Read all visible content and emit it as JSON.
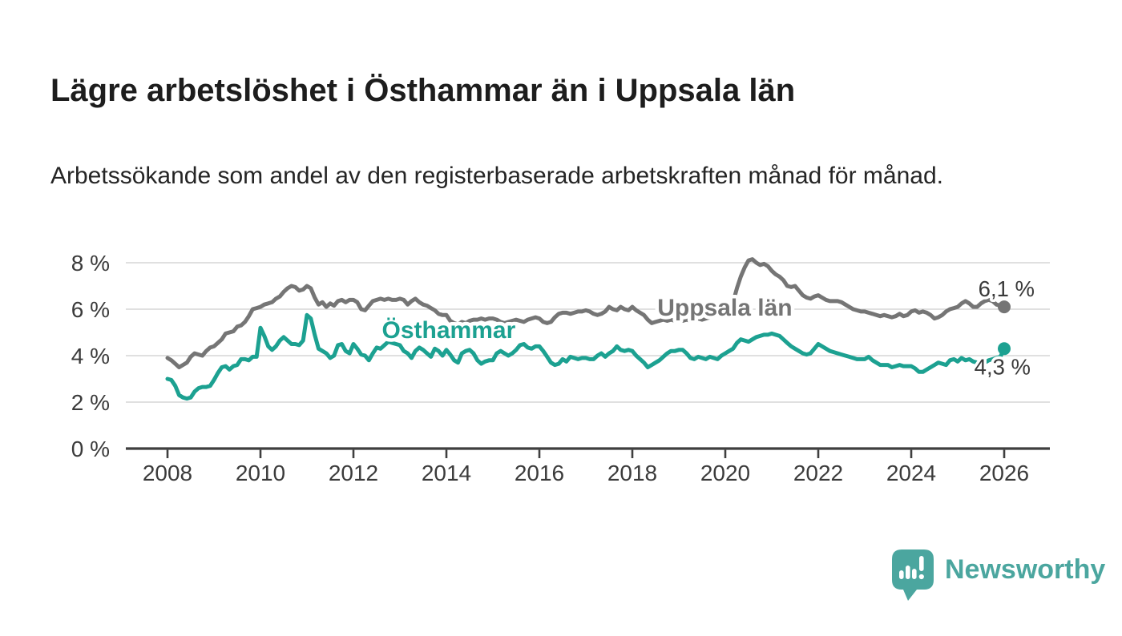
{
  "header": {
    "title": "Lägre arbetslöshet i Östhammar än i Uppsala län",
    "subtitle": "Arbetssökande som andel av den registerbaserade arbetskraften månad för månad."
  },
  "footer": {
    "brand": "Newsworthy",
    "brand_color": "#4BA69F",
    "icon": "newsworthy-speech-bubble-bar-chart"
  },
  "chart_data": {
    "type": "line",
    "title": "Lägre arbetslöshet i Östhammar än i Uppsala län",
    "subtitle": "Arbetssökande som andel av den registerbaserade arbetskraften månad för månad.",
    "x_axis": {
      "unit": "month",
      "start_year": 2008,
      "start": "2008-01",
      "end": "2026-01",
      "ticks": [
        2008,
        2010,
        2012,
        2014,
        2016,
        2018,
        2020,
        2022,
        2024,
        2026
      ]
    },
    "y_axis": {
      "ticks": [
        0,
        2,
        4,
        6,
        8
      ],
      "format": "{v} %",
      "ylim": [
        0,
        8.6
      ]
    },
    "grid": true,
    "style": {
      "grid_color": "#d6d6d6",
      "axis_color": "#3f3f3f",
      "tick_label_color": "#3b3b3b",
      "value_label_color": "#3a3a3a",
      "halo_color": "#ffffff"
    },
    "series": [
      {
        "name": "Uppsala län",
        "color": "#757575",
        "end_label": "6,1 %",
        "end_label_anchor": "end",
        "end_label_offset": {
          "dx": 38,
          "dy": -13
        },
        "inline_label": {
          "year": 2019.99,
          "value": 6.07
        },
        "values": [
          3.9,
          3.8,
          3.65,
          3.5,
          3.6,
          3.7,
          3.95,
          4.1,
          4.05,
          4.0,
          4.2,
          4.35,
          4.4,
          4.55,
          4.7,
          4.95,
          5.0,
          5.05,
          5.25,
          5.3,
          5.45,
          5.7,
          6.0,
          6.05,
          6.1,
          6.2,
          6.25,
          6.3,
          6.45,
          6.55,
          6.75,
          6.9,
          7.0,
          6.95,
          6.8,
          6.85,
          7.0,
          6.9,
          6.5,
          6.2,
          6.3,
          6.1,
          6.25,
          6.15,
          6.35,
          6.4,
          6.3,
          6.4,
          6.4,
          6.3,
          6.0,
          5.95,
          6.15,
          6.35,
          6.4,
          6.45,
          6.4,
          6.45,
          6.4,
          6.4,
          6.45,
          6.4,
          6.2,
          6.35,
          6.45,
          6.3,
          6.2,
          6.15,
          6.05,
          5.95,
          5.8,
          5.75,
          5.75,
          5.5,
          5.4,
          5.35,
          5.45,
          5.4,
          5.5,
          5.55,
          5.55,
          5.6,
          5.55,
          5.6,
          5.6,
          5.55,
          5.45,
          5.4,
          5.45,
          5.5,
          5.55,
          5.5,
          5.45,
          5.55,
          5.6,
          5.65,
          5.6,
          5.45,
          5.4,
          5.45,
          5.65,
          5.8,
          5.85,
          5.85,
          5.8,
          5.85,
          5.9,
          5.9,
          5.95,
          5.9,
          5.8,
          5.75,
          5.8,
          5.9,
          6.1,
          6.0,
          5.95,
          6.1,
          6.0,
          5.95,
          6.1,
          5.95,
          5.85,
          5.75,
          5.55,
          5.4,
          5.45,
          5.5,
          5.55,
          5.5,
          5.55,
          5.5,
          5.55,
          5.5,
          5.55,
          5.5,
          5.55,
          5.6,
          5.55,
          5.6,
          5.65,
          5.7,
          5.8,
          5.9,
          6.0,
          6.1,
          6.3,
          6.9,
          7.4,
          7.8,
          8.1,
          8.15,
          8.0,
          7.9,
          7.95,
          7.85,
          7.65,
          7.5,
          7.4,
          7.25,
          7.0,
          6.95,
          7.0,
          6.8,
          6.6,
          6.5,
          6.45,
          6.55,
          6.6,
          6.5,
          6.4,
          6.35,
          6.35,
          6.35,
          6.3,
          6.2,
          6.1,
          6.0,
          5.95,
          5.9,
          5.9,
          5.85,
          5.8,
          5.75,
          5.7,
          5.75,
          5.7,
          5.65,
          5.7,
          5.8,
          5.7,
          5.75,
          5.9,
          5.95,
          5.85,
          5.9,
          5.85,
          5.75,
          5.6,
          5.65,
          5.75,
          5.9,
          6.0,
          6.05,
          6.1,
          6.25,
          6.35,
          6.25,
          6.1,
          6.1,
          6.25,
          6.35,
          6.4,
          6.35,
          6.2,
          6.15,
          6.1
        ]
      },
      {
        "name": "Östhammar",
        "color": "#1CA191",
        "end_label": "4,3 %",
        "end_label_anchor": "end",
        "end_label_offset": {
          "dx": 33,
          "dy": 32
        },
        "inline_label": {
          "year": 2014.05,
          "value": 5.1
        },
        "values": [
          3.0,
          2.95,
          2.7,
          2.3,
          2.2,
          2.15,
          2.2,
          2.45,
          2.6,
          2.65,
          2.65,
          2.7,
          2.95,
          3.25,
          3.5,
          3.55,
          3.4,
          3.55,
          3.6,
          3.85,
          3.85,
          3.8,
          3.95,
          3.95,
          5.2,
          4.85,
          4.4,
          4.25,
          4.4,
          4.65,
          4.8,
          4.65,
          4.5,
          4.5,
          4.45,
          4.65,
          5.75,
          5.6,
          4.9,
          4.3,
          4.2,
          4.1,
          3.9,
          4.0,
          4.45,
          4.5,
          4.2,
          4.1,
          4.5,
          4.3,
          4.05,
          4.0,
          3.8,
          4.1,
          4.35,
          4.3,
          4.45,
          4.6,
          4.55,
          4.5,
          4.45,
          4.2,
          4.1,
          3.9,
          4.2,
          4.35,
          4.25,
          4.1,
          3.95,
          4.3,
          4.2,
          4.0,
          4.25,
          4.05,
          3.8,
          3.7,
          4.1,
          4.2,
          4.25,
          4.1,
          3.8,
          3.65,
          3.75,
          3.8,
          3.8,
          4.1,
          4.2,
          4.1,
          4.0,
          4.1,
          4.25,
          4.45,
          4.5,
          4.35,
          4.3,
          4.4,
          4.4,
          4.2,
          3.95,
          3.7,
          3.6,
          3.65,
          3.85,
          3.75,
          3.95,
          3.9,
          3.85,
          3.9,
          3.9,
          3.85,
          3.85,
          4.0,
          4.1,
          3.95,
          4.1,
          4.2,
          4.4,
          4.25,
          4.2,
          4.25,
          4.2,
          4.0,
          3.85,
          3.7,
          3.5,
          3.6,
          3.7,
          3.8,
          3.95,
          4.1,
          4.2,
          4.2,
          4.25,
          4.25,
          4.1,
          3.9,
          3.85,
          3.95,
          3.9,
          3.85,
          3.95,
          3.9,
          3.85,
          4.0,
          4.1,
          4.2,
          4.3,
          4.55,
          4.7,
          4.65,
          4.6,
          4.7,
          4.8,
          4.85,
          4.9,
          4.9,
          4.95,
          4.9,
          4.85,
          4.7,
          4.55,
          4.4,
          4.3,
          4.2,
          4.1,
          4.05,
          4.1,
          4.3,
          4.5,
          4.4,
          4.3,
          4.2,
          4.15,
          4.1,
          4.05,
          4.0,
          3.95,
          3.9,
          3.85,
          3.85,
          3.85,
          3.95,
          3.8,
          3.7,
          3.6,
          3.6,
          3.6,
          3.5,
          3.55,
          3.6,
          3.55,
          3.55,
          3.55,
          3.45,
          3.3,
          3.3,
          3.4,
          3.5,
          3.6,
          3.7,
          3.65,
          3.6,
          3.8,
          3.85,
          3.75,
          3.9,
          3.8,
          3.85,
          3.75,
          3.7,
          3.65,
          3.7,
          3.8,
          3.85,
          3.9,
          3.95,
          4.3
        ]
      }
    ]
  }
}
